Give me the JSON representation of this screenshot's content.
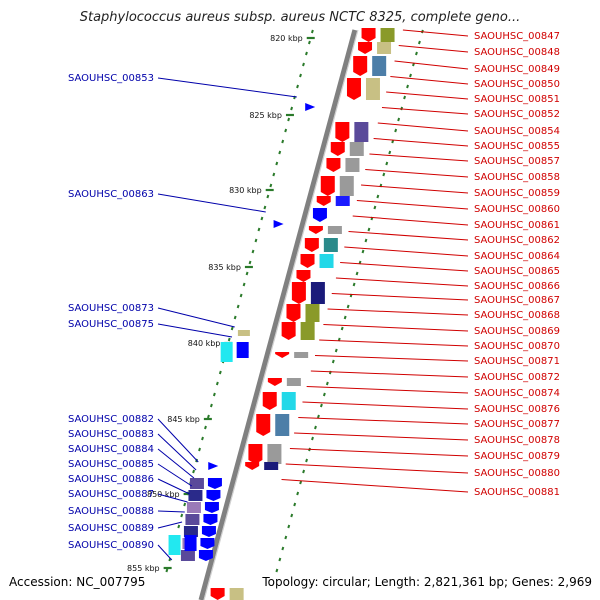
{
  "title": "Staphylococcus aureus subsp. aureus NCTC 8325, complete geno...",
  "accession": "Accession: NC_007795",
  "topology": "Topology: circular; Length: 2,821,361 bp; Genes: 2,969",
  "colors": {
    "backbone": "#808080",
    "ticks_major": "#2a7a2a",
    "ticks_minor": "#2a7a2a",
    "forward_genes": "#0000ff",
    "reverse_genes": "#ff0000",
    "label_forward": "#0000aa",
    "label_reverse": "#d00000"
  },
  "kbp_ticks": [
    "820 kbp",
    "825 kbp",
    "830 kbp",
    "835 kbp",
    "840 kbp",
    "845 kbp",
    "850 kbp",
    "855 kbp"
  ],
  "labels_right": [
    "SAOUHSC_00847",
    "SAOUHSC_00848",
    "SAOUHSC_00849",
    "SAOUHSC_00850",
    "SAOUHSC_00851",
    "SAOUHSC_00852",
    "SAOUHSC_00854",
    "SAOUHSC_00855",
    "SAOUHSC_00857",
    "SAOUHSC_00858",
    "SAOUHSC_00859",
    "SAOUHSC_00860",
    "SAOUHSC_00861",
    "SAOUHSC_00862",
    "SAOUHSC_00864",
    "SAOUHSC_00865",
    "SAOUHSC_00866",
    "SAOUHSC_00867",
    "SAOUHSC_00868",
    "SAOUHSC_00869",
    "SAOUHSC_00870",
    "SAOUHSC_00871",
    "SAOUHSC_00872",
    "SAOUHSC_00874",
    "SAOUHSC_00876",
    "SAOUHSC_00877",
    "SAOUHSC_00878",
    "SAOUHSC_00879",
    "SAOUHSC_00880",
    "SAOUHSC_00881"
  ],
  "labels_left": [
    "SAOUHSC_00853",
    "SAOUHSC_00863",
    "SAOUHSC_00873",
    "SAOUHSC_00875",
    "SAOUHSC_00882",
    "SAOUHSC_00883",
    "SAOUHSC_00884",
    "SAOUHSC_00885",
    "SAOUHSC_00886",
    "SAOUHSC_00887",
    "SAOUHSC_00888",
    "SAOUHSC_00889",
    "SAOUHSC_00890"
  ]
}
